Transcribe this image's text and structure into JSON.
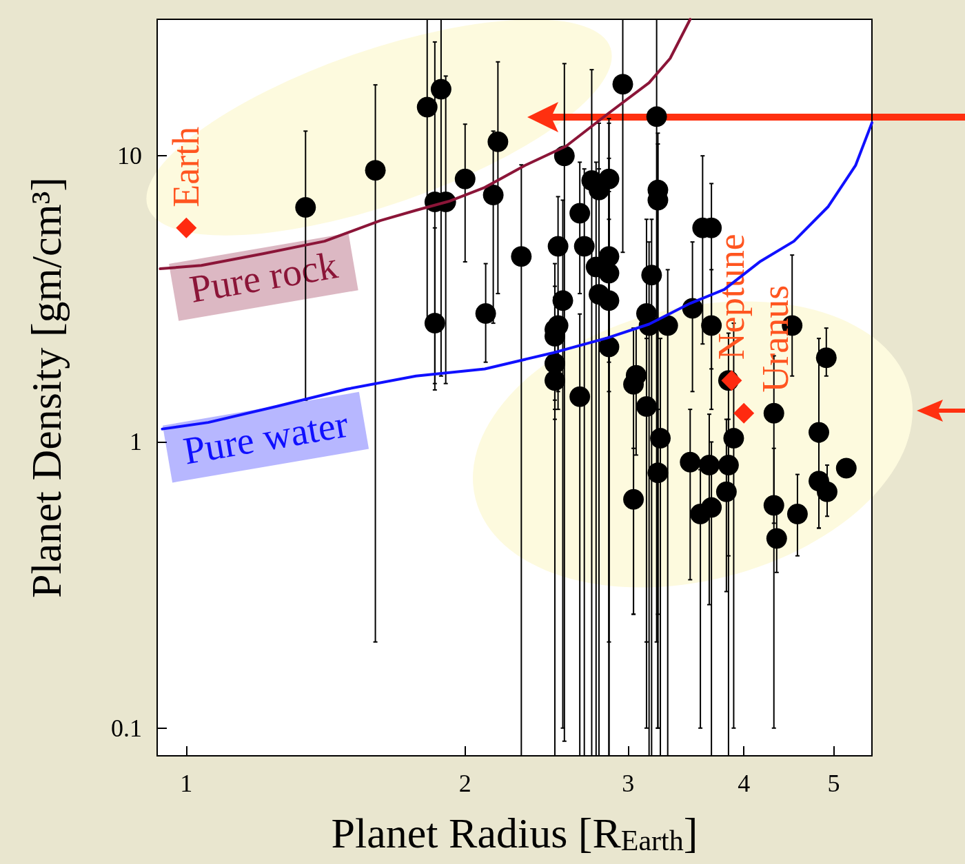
{
  "chart_data": {
    "type": "scatter",
    "xlabel": "Planet Radius [R$_{Earth}$]",
    "ylabel": "Planet Density [gm/cm³]",
    "log": "xy",
    "xlim": [
      0.93,
      5.5
    ],
    "ylim": [
      0.08,
      30
    ],
    "xticks": [
      1,
      2,
      3,
      4,
      5
    ],
    "yticks": [
      0.1,
      1,
      10
    ],
    "marker": "circle",
    "line_style": "solid",
    "series": [
      {
        "color": "#000000",
        "x": [
          1.345,
          1.6,
          1.82,
          1.884,
          1.855,
          1.906,
          1.855,
          2.0,
          2.17,
          2.145,
          2.105,
          2.3,
          2.56,
          2.74,
          2.86,
          2.79,
          2.66,
          2.52,
          2.69,
          2.86,
          2.77,
          2.86,
          2.79,
          2.86,
          2.55,
          2.96,
          3.22,
          3.23,
          3.23,
          3.18,
          3.14,
          2.5,
          2.52,
          2.5,
          2.5,
          3.61,
          3.69,
          3.52,
          3.16,
          3.31,
          3.69,
          4.51,
          4.91,
          2.86,
          2.5,
          2.66,
          3.06,
          3.04,
          3.14,
          3.85,
          4.31,
          3.9,
          3.25,
          4.82,
          3.5,
          3.67,
          3.85,
          3.23,
          5.16,
          4.82,
          4.92,
          3.83,
          3.04,
          4.31,
          3.69,
          3.59,
          4.57,
          4.34
        ],
        "values": [
          6.6,
          8.9,
          14.8,
          17.1,
          6.9,
          6.9,
          2.6,
          8.3,
          11.2,
          7.3,
          2.81,
          4.45,
          10.0,
          8.2,
          8.3,
          7.6,
          6.3,
          4.83,
          4.83,
          4.45,
          4.09,
          3.89,
          3.28,
          3.12,
          3.12,
          17.8,
          13.7,
          7.6,
          7.0,
          3.83,
          2.81,
          2.47,
          2.55,
          2.34,
          1.88,
          5.6,
          5.6,
          2.93,
          2.55,
          2.55,
          2.55,
          2.55,
          1.97,
          2.15,
          1.64,
          1.44,
          1.71,
          1.59,
          1.33,
          1.64,
          1.26,
          1.03,
          1.03,
          1.08,
          0.85,
          0.83,
          0.83,
          0.78,
          0.81,
          0.73,
          0.67,
          0.67,
          0.63,
          0.6,
          0.59,
          0.56,
          0.56,
          0.46
        ],
        "errors": [
          [
            1.4,
            12.2
          ],
          [
            0.2,
            17.7
          ],
          [
            2.6,
            30
          ],
          [
            1.7,
            30
          ],
          [
            1.6,
            25
          ],
          [
            1.6,
            19
          ],
          [
            1.52,
            5.6
          ],
          [
            4.26,
            12.9
          ],
          [
            3.3,
            21.3
          ],
          [
            2.6,
            12.2
          ],
          [
            1.9,
            4.2
          ],
          [
            0.08,
            9.3
          ],
          [
            0.09,
            21
          ],
          [
            0.08,
            20
          ],
          [
            1.9,
            13.5
          ],
          [
            0.08,
            13
          ],
          [
            3.3,
            9.5
          ],
          [
            1.3,
            7.2
          ],
          [
            0.08,
            9
          ],
          [
            0.08,
            9.8
          ],
          [
            0.08,
            9.5
          ],
          [
            1.5,
            13
          ],
          [
            0.08,
            9
          ],
          [
            0.2,
            7.5
          ],
          [
            0.1,
            7
          ],
          [
            4.6,
            30
          ],
          [
            0.2,
            30
          ],
          [
            0.1,
            12
          ],
          [
            0.1,
            11
          ],
          [
            0.08,
            6.0
          ],
          [
            0.2,
            6
          ],
          [
            1.4,
            4.2
          ],
          [
            1.5,
            3.3
          ],
          [
            1.3,
            3.5
          ],
          [
            1.2,
            3.2
          ],
          [
            2.2,
            10
          ],
          [
            1.8,
            8
          ],
          [
            1.5,
            5
          ],
          [
            0.08,
            5
          ],
          [
            0.08,
            4
          ],
          [
            1.3,
            4
          ],
          [
            1.7,
            4.5
          ],
          [
            1.7,
            2.5
          ],
          [
            0.08,
            6.0
          ],
          [
            0.08,
            3.2
          ],
          [
            0.08,
            2.8
          ],
          [
            0.9,
            2.5
          ],
          [
            0.25,
            2.5
          ],
          [
            0.1,
            2.3
          ],
          [
            0.08,
            2.4
          ],
          [
            0.52,
            2.0
          ],
          [
            0.1,
            2.6
          ],
          [
            0.08,
            2.3
          ],
          [
            0.5,
            2.3
          ],
          [
            0.33,
            1.3
          ],
          [
            0.27,
            1.25
          ],
          [
            0.4,
            1.2
          ],
          [
            0.25,
            1.3
          ],
          null,
          [
            0.5,
            1.0
          ],
          [
            0.55,
            0.83
          ],
          [
            0.3,
            1.2
          ],
          [
            0.25,
            0.95
          ],
          [
            0.1,
            0.95
          ],
          [
            0.08,
            1.0
          ],
          [
            0.1,
            0.8
          ],
          [
            0.4,
            0.77
          ],
          [
            0.35,
            0.56
          ]
        ]
      },
      {
        "type": "line",
        "name": "Pure rock",
        "color": "#8b1538",
        "marker": "none",
        "x": [
          0.937,
          1.038,
          1.21,
          1.41,
          1.62,
          1.77,
          1.92,
          2.1,
          2.32,
          2.57,
          2.85,
          3.16,
          3.33,
          3.5
        ],
        "values": [
          4.03,
          4.14,
          4.55,
          5.03,
          5.94,
          6.45,
          6.93,
          7.75,
          9.25,
          10.8,
          14.0,
          18.0,
          21.9,
          30.0
        ]
      },
      {
        "type": "line",
        "name": "Pure water",
        "color": "#1010ff",
        "marker": "none",
        "x": [
          0.942,
          1.056,
          1.25,
          1.49,
          1.77,
          2.1,
          2.49,
          2.85,
          3.16,
          3.5,
          3.81,
          4.16,
          4.53,
          4.93,
          5.28,
          5.5
        ],
        "values": [
          1.11,
          1.17,
          1.33,
          1.53,
          1.7,
          1.8,
          2.05,
          2.31,
          2.58,
          3.05,
          3.41,
          4.26,
          5.03,
          6.63,
          9.25,
          13.05
        ]
      },
      {
        "color": "#ff2a10",
        "marker": "diamond",
        "x": [
          1.0,
          3.88,
          4.0
        ],
        "values": [
          5.6,
          1.64,
          1.26
        ]
      }
    ],
    "annotations": [
      {
        "text": "Earth",
        "x": 1.0,
        "y": 5.6
      },
      {
        "text": "Neptune",
        "x": 3.88,
        "y": 1.64
      },
      {
        "text": "Uranus",
        "x": 4.0,
        "y": 1.26
      }
    ]
  }
}
